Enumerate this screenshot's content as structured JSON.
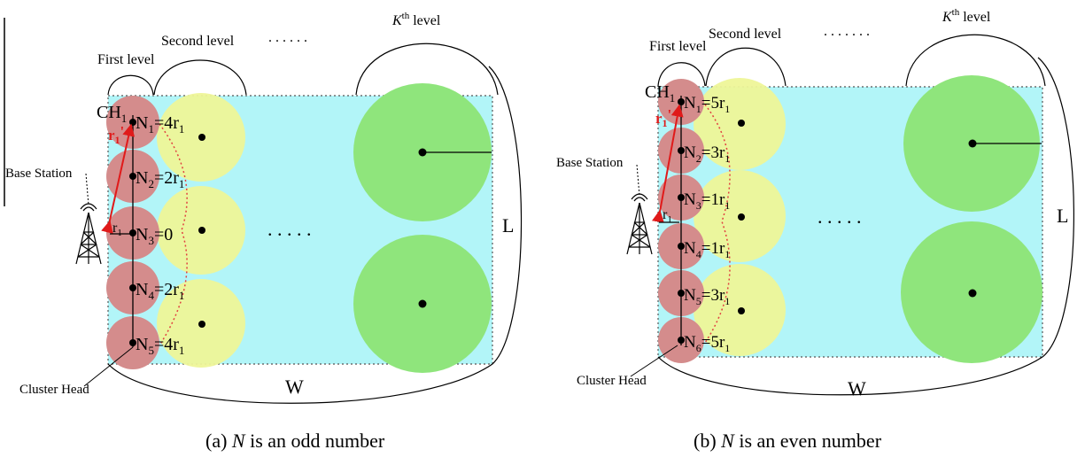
{
  "panels": [
    {
      "id": "a",
      "caption_prefix": "(a) ",
      "caption_var": "N",
      "caption_suffix": " is an odd number",
      "first_level": "First level",
      "second_level": "Second level",
      "dots": ". . . . . .",
      "kth_k": "K",
      "kth_sup": "th",
      "kth_rest": " level",
      "base_station": "Base Station",
      "cluster_head": "Cluster Head",
      "ch_label": "CH",
      "ch_sub": "1",
      "r_prime": "r",
      "r_prime_sub": "1",
      "r_prime_mark": "'",
      "r_label": "r",
      "r_sub": "1",
      "mid_dots": ". . . . .",
      "W": "W",
      "L": "L",
      "nodes": [
        {
          "sub": "1",
          "value": "=4r",
          "value_sub": "1"
        },
        {
          "sub": "2",
          "value": "=2r",
          "value_sub": "1"
        },
        {
          "sub": "3",
          "value": "=0",
          "value_sub": ""
        },
        {
          "sub": "4",
          "value": "=2r",
          "value_sub": "1"
        },
        {
          "sub": "5",
          "value": "=4r",
          "value_sub": "1"
        }
      ]
    },
    {
      "id": "b",
      "caption_prefix": "(b) ",
      "caption_var": "N",
      "caption_suffix": " is an even number",
      "first_level": "First level",
      "second_level": "Second level",
      "dots": ". . . . . . .",
      "kth_k": "K",
      "kth_sup": "th",
      "kth_rest": " level",
      "base_station": "Base Station",
      "cluster_head": "Cluster Head",
      "ch_label": "CH",
      "ch_sub": "1",
      "r_prime": "r",
      "r_prime_sub": "1",
      "r_prime_mark": "'",
      "r_label": "r",
      "r_sub": "1",
      "mid_dots": ". . . . .",
      "W": "W",
      "L": "L",
      "nodes": [
        {
          "sub": "1",
          "value": "=5r",
          "value_sub": "1"
        },
        {
          "sub": "2",
          "value": "=3r",
          "value_sub": "1"
        },
        {
          "sub": "3",
          "value": "=1r",
          "value_sub": "1"
        },
        {
          "sub": "4",
          "value": "=1r",
          "value_sub": "1"
        },
        {
          "sub": "5",
          "value": "=3r",
          "value_sub": "1"
        },
        {
          "sub": "6",
          "value": "=5r",
          "value_sub": "1"
        }
      ]
    }
  ],
  "colors": {
    "field": "#b2f5f8",
    "first_level": "#d48c8c",
    "second_level": "#eef598",
    "kth_level": "#8fe57c",
    "red_arrow": "#e01a1a",
    "red_dotted": "#e04040"
  }
}
